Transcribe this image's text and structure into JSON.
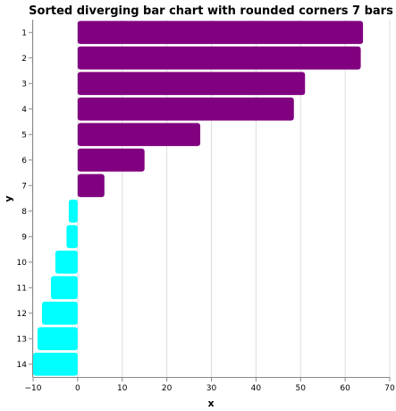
{
  "chart_data": {
    "type": "bar",
    "orientation": "horizontal",
    "title": "Sorted diverging bar chart with rounded corners 7 bars",
    "xlabel": "x",
    "ylabel": "y",
    "xlim": [
      -10,
      70
    ],
    "x_ticks": [
      -10,
      0,
      10,
      20,
      30,
      40,
      50,
      60,
      70
    ],
    "grid": true,
    "legend": "none",
    "categories": [
      "1",
      "2",
      "3",
      "4",
      "5",
      "6",
      "7",
      "8",
      "9",
      "10",
      "11",
      "12",
      "13",
      "14"
    ],
    "values": [
      64,
      63.5,
      51,
      48.5,
      27.5,
      15,
      6,
      -2,
      -2.5,
      -5,
      -6,
      -8,
      -9,
      -10
    ],
    "colors": {
      "positive": "#800080",
      "negative": "#00ffff",
      "grid": "#dddddd",
      "axis": "#888888"
    }
  }
}
